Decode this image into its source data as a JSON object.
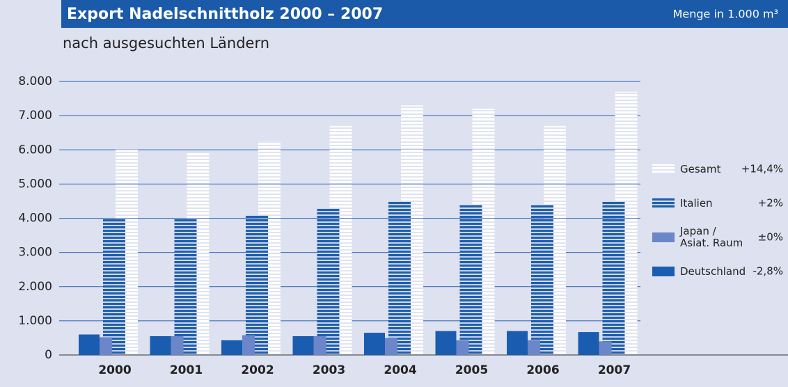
{
  "chart_data": {
    "type": "bar",
    "title": "Export Nadelschnittholz 2000 – 2007",
    "subtitle": "nach ausgesuchten Ländern",
    "unit_label": "Menge in 1.000 m³",
    "categories": [
      "2000",
      "2001",
      "2002",
      "2003",
      "2004",
      "2005",
      "2006",
      "2007"
    ],
    "series": [
      {
        "name": "Gesamt",
        "change": "+14,4%",
        "color": "#ffffff",
        "striped": true,
        "values": [
          6000,
          5900,
          6250,
          6700,
          7300,
          7200,
          6700,
          7700
        ]
      },
      {
        "name": "Italien",
        "change": "+2%",
        "color": "#1f5fad",
        "striped": true,
        "values": [
          4000,
          4000,
          4100,
          4300,
          4500,
          4400,
          4400,
          4500
        ]
      },
      {
        "name": "Deutschland",
        "change": "-2,8%",
        "color": "#1a5db0",
        "striped": false,
        "values": [
          600,
          550,
          430,
          550,
          650,
          700,
          700,
          670
        ]
      },
      {
        "name": "Japan / Asiat. Raum",
        "change": "±0%",
        "color": "#6b86c9",
        "striped": false,
        "values": [
          520,
          550,
          580,
          550,
          500,
          430,
          430,
          400
        ]
      }
    ],
    "ylim": [
      0,
      8000
    ],
    "yticks": [
      {
        "value": 0,
        "label": "0"
      },
      {
        "value": 1000,
        "label": "1.000"
      },
      {
        "value": 2000,
        "label": "2.000"
      },
      {
        "value": 3000,
        "label": "3.000"
      },
      {
        "value": 4000,
        "label": "4.000"
      },
      {
        "value": 5000,
        "label": "5.000"
      },
      {
        "value": 6000,
        "label": "6.000"
      },
      {
        "value": 7000,
        "label": "7.000"
      },
      {
        "value": 8000,
        "label": "8.000"
      }
    ],
    "grid": true
  }
}
